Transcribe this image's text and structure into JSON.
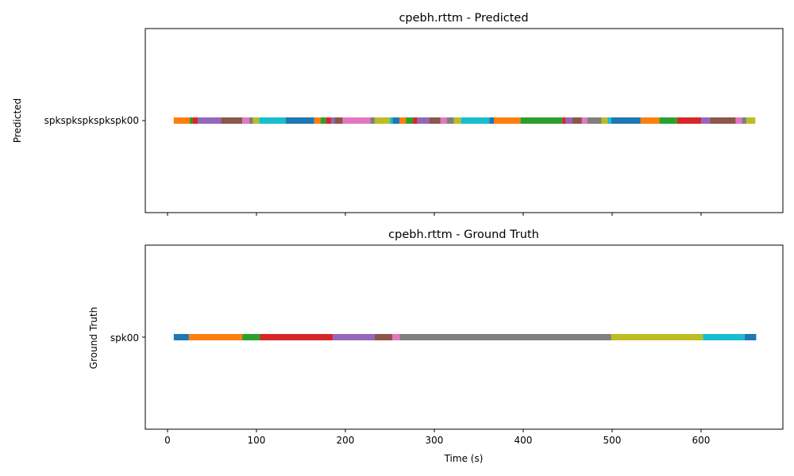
{
  "chart_data": [
    {
      "type": "timeline",
      "title": "cpebh.rttm - Predicted",
      "ylabel": "Predicted",
      "xlabel": "",
      "xlim": [
        -25,
        692
      ],
      "xticks": [
        0,
        100,
        200,
        300,
        400,
        500,
        600
      ],
      "show_xtick_labels": false,
      "row_label": "spkspkspkspkspk00",
      "segments": [
        {
          "start": 7,
          "end": 25,
          "color": "#ff7f0e"
        },
        {
          "start": 25,
          "end": 28,
          "color": "#2ca02c"
        },
        {
          "start": 28,
          "end": 34,
          "color": "#d62728"
        },
        {
          "start": 34,
          "end": 60,
          "color": "#9467bd"
        },
        {
          "start": 60,
          "end": 84,
          "color": "#8c564b"
        },
        {
          "start": 84,
          "end": 92,
          "color": "#e377c2"
        },
        {
          "start": 92,
          "end": 96,
          "color": "#7f7f7f"
        },
        {
          "start": 96,
          "end": 103,
          "color": "#bcbd22"
        },
        {
          "start": 103,
          "end": 133,
          "color": "#17becf"
        },
        {
          "start": 133,
          "end": 165,
          "color": "#1f77b4"
        },
        {
          "start": 165,
          "end": 172,
          "color": "#ff7f0e"
        },
        {
          "start": 172,
          "end": 178,
          "color": "#2ca02c"
        },
        {
          "start": 178,
          "end": 184,
          "color": "#d62728"
        },
        {
          "start": 184,
          "end": 188,
          "color": "#9467bd"
        },
        {
          "start": 188,
          "end": 197,
          "color": "#8c564b"
        },
        {
          "start": 197,
          "end": 228,
          "color": "#e377c2"
        },
        {
          "start": 228,
          "end": 233,
          "color": "#7f7f7f"
        },
        {
          "start": 233,
          "end": 250,
          "color": "#bcbd22"
        },
        {
          "start": 250,
          "end": 253,
          "color": "#17becf"
        },
        {
          "start": 253,
          "end": 261,
          "color": "#1f77b4"
        },
        {
          "start": 261,
          "end": 268,
          "color": "#ff7f0e"
        },
        {
          "start": 268,
          "end": 276,
          "color": "#2ca02c"
        },
        {
          "start": 276,
          "end": 281,
          "color": "#d62728"
        },
        {
          "start": 281,
          "end": 294,
          "color": "#9467bd"
        },
        {
          "start": 294,
          "end": 307,
          "color": "#8c564b"
        },
        {
          "start": 307,
          "end": 314,
          "color": "#e377c2"
        },
        {
          "start": 314,
          "end": 322,
          "color": "#7f7f7f"
        },
        {
          "start": 322,
          "end": 330,
          "color": "#bcbd22"
        },
        {
          "start": 330,
          "end": 362,
          "color": "#17becf"
        },
        {
          "start": 362,
          "end": 367,
          "color": "#1f77b4"
        },
        {
          "start": 367,
          "end": 397,
          "color": "#ff7f0e"
        },
        {
          "start": 397,
          "end": 444,
          "color": "#2ca02c"
        },
        {
          "start": 444,
          "end": 448,
          "color": "#d62728"
        },
        {
          "start": 448,
          "end": 455,
          "color": "#9467bd"
        },
        {
          "start": 455,
          "end": 466,
          "color": "#8c564b"
        },
        {
          "start": 466,
          "end": 472,
          "color": "#e377c2"
        },
        {
          "start": 472,
          "end": 488,
          "color": "#7f7f7f"
        },
        {
          "start": 488,
          "end": 495,
          "color": "#bcbd22"
        },
        {
          "start": 495,
          "end": 499,
          "color": "#17becf"
        },
        {
          "start": 499,
          "end": 532,
          "color": "#1f77b4"
        },
        {
          "start": 532,
          "end": 553,
          "color": "#ff7f0e"
        },
        {
          "start": 553,
          "end": 573,
          "color": "#2ca02c"
        },
        {
          "start": 573,
          "end": 600,
          "color": "#d62728"
        },
        {
          "start": 600,
          "end": 610,
          "color": "#9467bd"
        },
        {
          "start": 610,
          "end": 639,
          "color": "#8c564b"
        },
        {
          "start": 639,
          "end": 646,
          "color": "#e377c2"
        },
        {
          "start": 646,
          "end": 651,
          "color": "#7f7f7f"
        },
        {
          "start": 651,
          "end": 661,
          "color": "#bcbd22"
        }
      ]
    },
    {
      "type": "timeline",
      "title": "cpebh.rttm - Ground Truth",
      "ylabel": "Ground Truth",
      "xlabel": "Time (s)",
      "xlim": [
        -25,
        692
      ],
      "xticks": [
        0,
        100,
        200,
        300,
        400,
        500,
        600
      ],
      "show_xtick_labels": true,
      "row_label": "spk00",
      "segments": [
        {
          "start": 7,
          "end": 24,
          "color": "#1f77b4"
        },
        {
          "start": 24,
          "end": 84,
          "color": "#ff7f0e"
        },
        {
          "start": 84,
          "end": 104,
          "color": "#2ca02c"
        },
        {
          "start": 104,
          "end": 186,
          "color": "#d62728"
        },
        {
          "start": 186,
          "end": 233,
          "color": "#9467bd"
        },
        {
          "start": 233,
          "end": 253,
          "color": "#8c564b"
        },
        {
          "start": 253,
          "end": 261,
          "color": "#e377c2"
        },
        {
          "start": 261,
          "end": 499,
          "color": "#7f7f7f"
        },
        {
          "start": 499,
          "end": 602,
          "color": "#bcbd22"
        },
        {
          "start": 602,
          "end": 649,
          "color": "#17becf"
        },
        {
          "start": 649,
          "end": 662,
          "color": "#1f77b4"
        }
      ]
    }
  ]
}
